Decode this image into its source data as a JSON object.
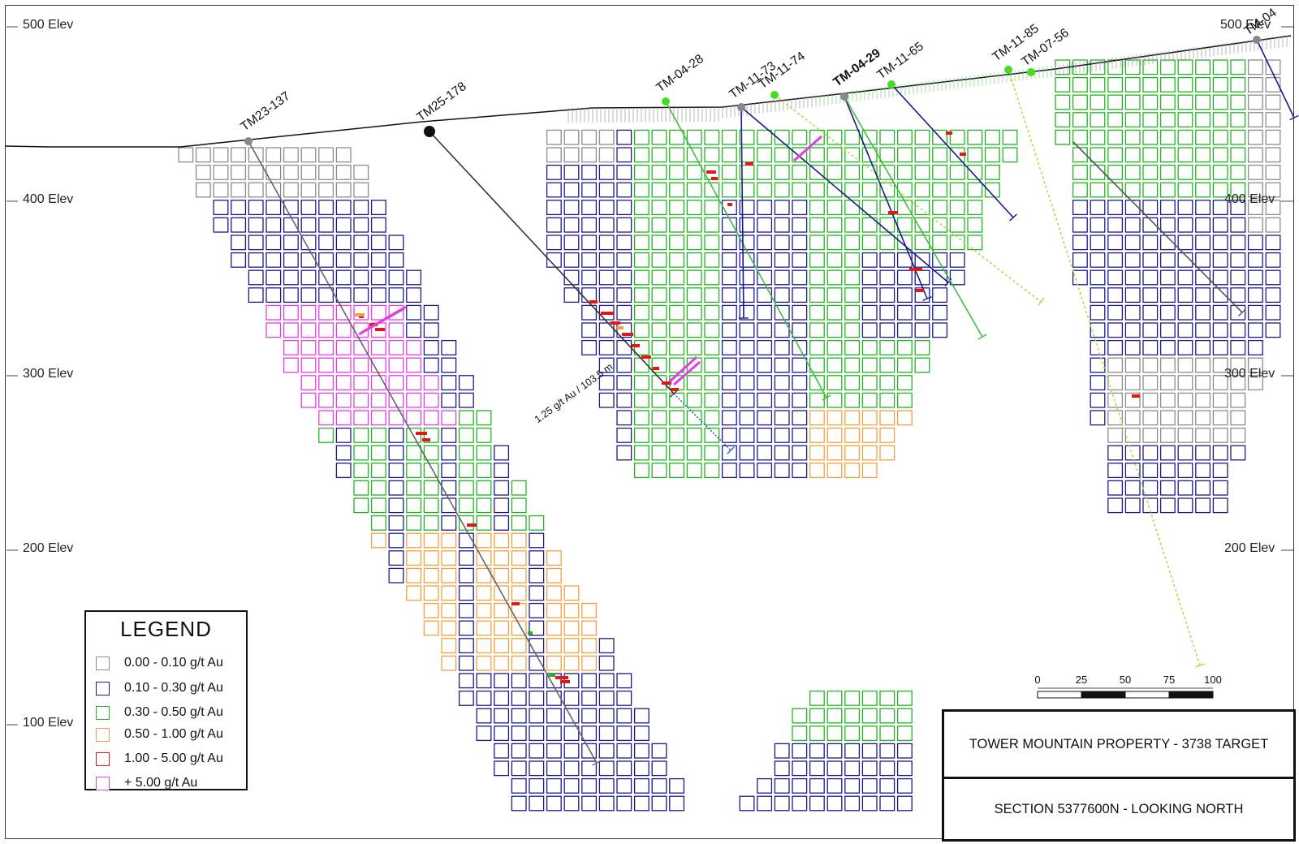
{
  "figure": {
    "title": "TOWER MOUNTAIN PROPERTY - 3738 TARGET",
    "subtitle": "SECTION 5377600N - LOOKING NORTH"
  },
  "elevation_labels": [
    "500 Elev",
    "400 Elev",
    "300 Elev",
    "200 Elev",
    "100 Elev"
  ],
  "elevation_values": [
    500,
    400,
    300,
    200,
    100
  ],
  "drill_holes": [
    {
      "name": "TM23-137",
      "color": "#888888"
    },
    {
      "name": "TM25-178",
      "color": "#111111"
    },
    {
      "name": "TM-04-28",
      "color": "#44dd22"
    },
    {
      "name": "TM-11-73",
      "color": "#888888"
    },
    {
      "name": "TM-11-74",
      "color": "#44dd22"
    },
    {
      "name": "TM-04-29",
      "color": "#888888"
    },
    {
      "name": "TM-11-65",
      "color": "#44dd22"
    },
    {
      "name": "TM-11-85",
      "color": "#44dd22"
    },
    {
      "name": "TM-07-56",
      "color": "#44dd22"
    },
    {
      "name": "TM-04",
      "color": "#888888"
    }
  ],
  "intercept_label": "1.25 g/t Au / 103.5 m",
  "legend": {
    "title": "LEGEND",
    "items": [
      {
        "label": "0.00 - 0.10 g/t Au",
        "color": "#8c8c8c"
      },
      {
        "label": "0.10 - 0.30 g/t Au",
        "color": "#1a1a8c"
      },
      {
        "label": "0.30 - 0.50 g/t Au",
        "color": "#22b422"
      },
      {
        "label": "0.50 - 1.00 g/t Au",
        "color": "#f0a040"
      },
      {
        "label": "1.00 - 5.00 g/t Au",
        "color": "#e01818"
      },
      {
        "label": "+ 5.00 g/t Au",
        "color": "#e040e0"
      }
    ]
  },
  "scale_bar": {
    "ticks": [
      "0",
      "25",
      "50",
      "75",
      "100"
    ]
  }
}
